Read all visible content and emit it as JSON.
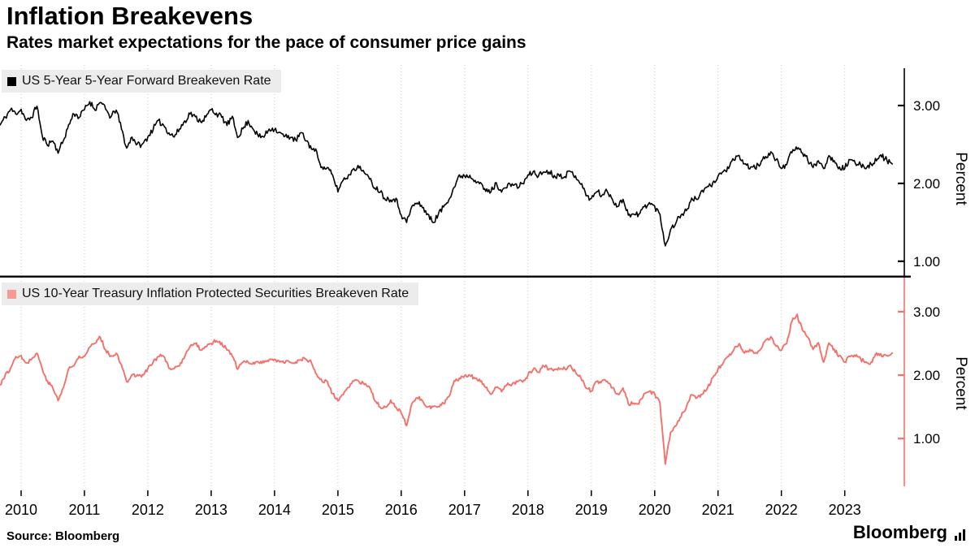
{
  "header": {
    "title": "Inflation Breakevens",
    "subtitle": "Rates market expectations for the pace of consumer price gains"
  },
  "footer": {
    "source": "Source: Bloomberg",
    "brand": "Bloomberg"
  },
  "x_axis": {
    "xlim": [
      2009.667,
      2023.94
    ],
    "ticks": [
      2010,
      2011,
      2012,
      2013,
      2014,
      2015,
      2016,
      2017,
      2018,
      2019,
      2020,
      2021,
      2022,
      2023
    ]
  },
  "chart_data": [
    {
      "type": "line",
      "panel": "top",
      "series_name": "US 5-Year 5-Year Forward Breakeven Rate",
      "color": "#000000",
      "legend_color": "#000000",
      "ylabel": "Percent",
      "ylim": [
        0.8,
        3.48
      ],
      "y_ticks": [
        {
          "v": 3,
          "label": "3.00"
        },
        {
          "v": 2,
          "label": "2.00"
        },
        {
          "v": 1,
          "label": "1.00"
        }
      ],
      "x_start": 2009.667,
      "x_step": 0.0833333,
      "values": [
        2.75,
        2.85,
        2.95,
        2.9,
        2.95,
        2.8,
        2.85,
        3.0,
        2.6,
        2.5,
        2.55,
        2.4,
        2.55,
        2.75,
        2.9,
        2.85,
        2.95,
        3.05,
        2.95,
        3.05,
        2.95,
        2.85,
        2.95,
        2.7,
        2.45,
        2.6,
        2.5,
        2.5,
        2.6,
        2.7,
        2.8,
        2.75,
        2.65,
        2.6,
        2.7,
        2.8,
        2.9,
        2.85,
        2.8,
        2.85,
        2.95,
        2.9,
        2.85,
        2.75,
        2.85,
        2.6,
        2.7,
        2.8,
        2.7,
        2.6,
        2.6,
        2.7,
        2.7,
        2.65,
        2.6,
        2.6,
        2.55,
        2.65,
        2.55,
        2.45,
        2.4,
        2.2,
        2.2,
        2.1,
        1.9,
        2.05,
        2.1,
        2.2,
        2.2,
        2.15,
        2.05,
        1.95,
        1.9,
        1.8,
        1.8,
        1.8,
        1.6,
        1.5,
        1.7,
        1.75,
        1.7,
        1.6,
        1.5,
        1.6,
        1.7,
        1.8,
        1.95,
        2.1,
        2.1,
        2.1,
        2.05,
        2.0,
        1.9,
        1.9,
        2.0,
        1.9,
        1.95,
        2.0,
        1.95,
        2.0,
        2.1,
        2.15,
        2.1,
        2.15,
        2.15,
        2.1,
        2.1,
        2.1,
        2.15,
        2.1,
        2.0,
        1.85,
        1.8,
        1.9,
        1.85,
        1.9,
        1.8,
        1.7,
        1.8,
        1.6,
        1.6,
        1.6,
        1.7,
        1.75,
        1.7,
        1.6,
        1.2,
        1.4,
        1.5,
        1.6,
        1.65,
        1.8,
        1.8,
        1.9,
        1.95,
        2.0,
        2.1,
        2.15,
        2.2,
        2.3,
        2.35,
        2.25,
        2.2,
        2.2,
        2.25,
        2.35,
        2.4,
        2.3,
        2.2,
        2.25,
        2.4,
        2.45,
        2.4,
        2.3,
        2.2,
        2.3,
        2.2,
        2.35,
        2.3,
        2.2,
        2.2,
        2.3,
        2.25,
        2.25,
        2.2,
        2.25,
        2.3,
        2.35,
        2.3,
        2.25
      ]
    },
    {
      "type": "line",
      "panel": "bottom",
      "series_name": "US 10-Year Treasury Inflation Protected Securities Breakeven Rate",
      "color": "#f4716b",
      "legend_color": "#f79a94",
      "ylabel": "Percent",
      "ylim": [
        0.21,
        3.51
      ],
      "y_ticks": [
        {
          "v": 3,
          "label": "3.00"
        },
        {
          "v": 2,
          "label": "2.00"
        },
        {
          "v": 1,
          "label": "1.00"
        }
      ],
      "x_start": 2009.667,
      "x_step": 0.0833333,
      "values": [
        1.85,
        2.0,
        2.1,
        2.3,
        2.3,
        2.2,
        2.25,
        2.35,
        2.1,
        1.9,
        1.8,
        1.6,
        1.8,
        2.1,
        2.15,
        2.3,
        2.3,
        2.45,
        2.5,
        2.6,
        2.4,
        2.3,
        2.35,
        2.15,
        1.9,
        2.0,
        2.0,
        2.0,
        2.1,
        2.2,
        2.3,
        2.3,
        2.1,
        2.1,
        2.15,
        2.3,
        2.45,
        2.5,
        2.4,
        2.45,
        2.5,
        2.55,
        2.5,
        2.4,
        2.3,
        2.1,
        2.2,
        2.2,
        2.2,
        2.2,
        2.2,
        2.25,
        2.25,
        2.2,
        2.2,
        2.2,
        2.2,
        2.25,
        2.25,
        2.2,
        2.0,
        1.9,
        1.9,
        1.7,
        1.6,
        1.7,
        1.8,
        1.9,
        1.9,
        1.85,
        1.8,
        1.6,
        1.5,
        1.5,
        1.6,
        1.5,
        1.4,
        1.2,
        1.55,
        1.65,
        1.6,
        1.5,
        1.5,
        1.5,
        1.55,
        1.65,
        1.9,
        1.95,
        2.0,
        2.0,
        1.95,
        1.9,
        1.8,
        1.7,
        1.8,
        1.75,
        1.85,
        1.85,
        1.9,
        1.9,
        2.0,
        2.1,
        2.05,
        2.15,
        2.1,
        2.1,
        2.1,
        2.1,
        2.15,
        2.05,
        1.95,
        1.8,
        1.75,
        1.9,
        1.9,
        1.9,
        1.8,
        1.7,
        1.8,
        1.55,
        1.55,
        1.55,
        1.7,
        1.75,
        1.7,
        1.55,
        0.6,
        1.1,
        1.2,
        1.35,
        1.5,
        1.7,
        1.65,
        1.7,
        1.8,
        1.95,
        2.1,
        2.2,
        2.3,
        2.4,
        2.5,
        2.35,
        2.4,
        2.35,
        2.4,
        2.55,
        2.6,
        2.45,
        2.4,
        2.5,
        2.85,
        2.95,
        2.7,
        2.6,
        2.4,
        2.5,
        2.2,
        2.5,
        2.4,
        2.3,
        2.2,
        2.3,
        2.3,
        2.25,
        2.2,
        2.2,
        2.35,
        2.3,
        2.3,
        2.35
      ]
    }
  ]
}
